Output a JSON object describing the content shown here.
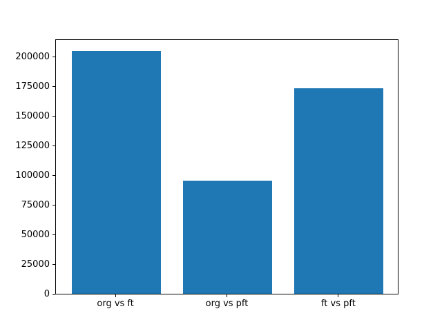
{
  "chart_data": {
    "type": "bar",
    "categories": [
      "org vs ft",
      "org vs pft",
      "ft vs pft"
    ],
    "values": [
      204500,
      95500,
      173000
    ],
    "title": "",
    "xlabel": "",
    "ylabel": "",
    "ylim": [
      0,
      215000
    ],
    "xlim": [
      -0.54,
      2.54
    ],
    "yticks": [
      0,
      25000,
      50000,
      75000,
      100000,
      125000,
      150000,
      175000,
      200000
    ],
    "bar_width_fraction": 0.8,
    "bar_color": "#1f77b4",
    "axis_color": "#000000",
    "background_color": "#ffffff",
    "grid": false,
    "legend": null
  }
}
